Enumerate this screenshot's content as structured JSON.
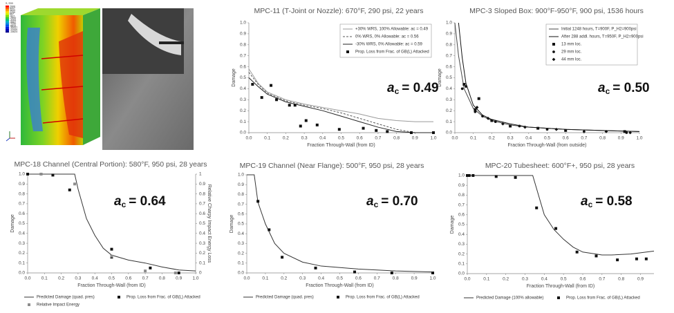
{
  "image": {
    "contour_legend": {
      "title": "S, S33",
      "levels": [
        7000,
        5417,
        3833,
        2250,
        667,
        -917,
        -2500,
        -4083,
        -5667,
        -7250,
        -8833,
        -10417,
        -12000,
        -14624
      ]
    }
  },
  "chart_data": [
    {
      "type": "line",
      "title": "MPC-11 (T-Joint or Nozzle): 670°F, 290 psi, 22 years",
      "x_label": "Fraction Through-Wall (from ID)",
      "y_label": "Damage",
      "annotation": {
        "symbol": "a",
        "subscript": "c",
        "text": "= 0.49"
      },
      "legend": "upper right",
      "xlim": [
        0,
        1
      ],
      "ylim": [
        0,
        1
      ],
      "xticks": [
        {
          "value": 0,
          "label": "0.0"
        },
        0.1,
        0.2,
        0.3,
        0.4,
        0.5,
        0.6,
        0.7,
        0.8,
        0.9,
        {
          "value": 1,
          "label": "1.0"
        }
      ],
      "yticks": [
        {
          "value": 0,
          "label": "0.0"
        },
        0.1,
        0.2,
        0.3,
        0.4,
        0.5,
        0.6,
        0.7,
        0.8,
        0.9,
        {
          "value": 1,
          "label": "1.0"
        }
      ],
      "series": [
        {
          "name": "+30% WRS, 100% Allowable: ac = 0.49",
          "style": "line",
          "color": "#9a9a9a",
          "x": [
            0,
            0.05,
            0.1,
            0.2,
            0.3,
            0.4,
            0.5,
            0.6,
            0.7,
            0.8,
            0.9,
            1.0
          ],
          "values": [
            0.58,
            0.45,
            0.37,
            0.3,
            0.26,
            0.23,
            0.2,
            0.17,
            0.13,
            0.11,
            0.1,
            0.1
          ]
        },
        {
          "name": "0% WRS, 0% Allowable: ac = 0.56",
          "style": "line",
          "dash": true,
          "color": "#555555",
          "x": [
            0,
            0.05,
            0.1,
            0.2,
            0.3,
            0.4,
            0.5,
            0.6,
            0.7,
            0.8,
            0.9,
            1.0
          ],
          "values": [
            0.55,
            0.44,
            0.36,
            0.29,
            0.25,
            0.22,
            0.18,
            0.13,
            0.08,
            0.03,
            0,
            0
          ]
        },
        {
          "name": "-30% WRS, 0% Allowable: ac = 0.59",
          "style": "line",
          "color": "#222222",
          "x": [
            0,
            0.05,
            0.1,
            0.2,
            0.3,
            0.4,
            0.5,
            0.6,
            0.7,
            0.8,
            0.9,
            1.0
          ],
          "values": [
            0.5,
            0.42,
            0.35,
            0.28,
            0.24,
            0.2,
            0.15,
            0.1,
            0.05,
            0.01,
            0,
            0
          ]
        },
        {
          "name": "Prop. Loss from Frac. of GB(L) Attacked",
          "style": "markers",
          "marker": "square",
          "color": "#111111",
          "x": [
            0.02,
            0.07,
            0.12,
            0.15,
            0.22,
            0.25,
            0.28,
            0.31,
            0.37,
            0.49,
            0.62,
            0.69,
            0.75,
            0.88,
            1.0
          ],
          "values": [
            0.44,
            0.32,
            0.43,
            0.3,
            0.25,
            0.25,
            0.06,
            0.11,
            0.07,
            0.03,
            0.04,
            0.02,
            0.01,
            0,
            0
          ]
        }
      ]
    },
    {
      "type": "line",
      "title": "MPC-3 Sloped Box: 900°F-950°F, 900 psi, 1536 hours",
      "x_label": "Fraction Through-Wall (from outside)",
      "y_label": "Damage",
      "annotation": {
        "symbol": "a",
        "subscript": "c",
        "text": "= 0.50"
      },
      "legend": "upper right",
      "xlim": [
        0,
        1
      ],
      "ylim": [
        0,
        1
      ],
      "xticks": [
        {
          "value": 0,
          "label": "0.0"
        },
        0.1,
        0.2,
        0.3,
        0.4,
        0.5,
        0.6,
        0.7,
        0.8,
        0.9,
        {
          "value": 1,
          "label": "1.0"
        }
      ],
      "yticks": [
        {
          "value": 0,
          "label": "0.0"
        },
        0.1,
        0.2,
        0.3,
        0.4,
        0.5,
        0.6,
        0.7,
        0.8,
        0.9,
        {
          "value": 1,
          "label": "1.0"
        }
      ],
      "series": [
        {
          "name": "Initial 1248 hours, T=900F, P_H2=900psi",
          "style": "line",
          "color": "#444444",
          "x": [
            0,
            0.02,
            0.05,
            0.1,
            0.15,
            0.2,
            0.3,
            0.4,
            0.5,
            0.6,
            0.8,
            1.0
          ],
          "values": [
            1.0,
            0.7,
            0.4,
            0.22,
            0.15,
            0.11,
            0.07,
            0.05,
            0.04,
            0.03,
            0.02,
            0.01
          ]
        },
        {
          "name": "After 288 addl. hours, T=950F, P_H2=900psi",
          "style": "line",
          "color": "#111111",
          "x": [
            0.02,
            0.04,
            0.06,
            0.1,
            0.15,
            0.2,
            0.3,
            0.4,
            0.5,
            0.6,
            0.8,
            1.0
          ],
          "values": [
            1.0,
            0.68,
            0.45,
            0.25,
            0.16,
            0.12,
            0.08,
            0.05,
            0.04,
            0.03,
            0.02,
            0.01
          ]
        },
        {
          "name": "13 mm loc.",
          "style": "markers",
          "marker": "square",
          "color": "#111111",
          "x": [
            0.05,
            0.11,
            0.13,
            0.2,
            0.3,
            0.45,
            0.6,
            0.92
          ],
          "values": [
            0.44,
            0.21,
            0.31,
            0.11,
            0.06,
            0.04,
            0.02,
            0.01
          ]
        },
        {
          "name": "29 mm loc.",
          "style": "markers",
          "marker": "circle",
          "color": "#111111",
          "x": [
            0.04,
            0.11,
            0.15,
            0.22,
            0.35,
            0.5,
            0.7,
            0.93
          ],
          "values": [
            0.4,
            0.19,
            0.15,
            0.1,
            0.06,
            0.03,
            0.01,
            0
          ]
        },
        {
          "name": "44 mm loc.",
          "style": "markers",
          "marker": "diamond",
          "color": "#111111",
          "x": [
            0.06,
            0.12,
            0.18,
            0.26,
            0.38,
            0.55,
            0.82,
            0.95
          ],
          "values": [
            0.42,
            0.23,
            0.13,
            0.08,
            0.05,
            0.03,
            0.01,
            0
          ]
        }
      ]
    },
    {
      "type": "line",
      "title": "MPC-18 Channel (Central Portion): 580°F, 950 psi, 28 years",
      "x_label": "Fraction Through-Wall (from ID)",
      "y_label": "Damage",
      "y2_label": "Relative Charpy Impact Energy Loss",
      "annotation": {
        "symbol": "a",
        "subscript": "c",
        "text": "= 0.64"
      },
      "legend": "lower center",
      "xlim": [
        0,
        1
      ],
      "ylim": [
        0,
        1
      ],
      "y2lim": [
        0,
        1
      ],
      "xticks": [
        {
          "value": 0,
          "label": "0.0"
        },
        0.1,
        0.2,
        0.3,
        0.4,
        0.5,
        0.6,
        0.7,
        0.8,
        0.9,
        {
          "value": 1,
          "label": "1.0"
        }
      ],
      "yticks": [
        {
          "value": 0,
          "label": "0.0"
        },
        0.1,
        0.2,
        0.3,
        0.4,
        0.5,
        0.6,
        0.7,
        0.8,
        0.9,
        {
          "value": 1,
          "label": "1.0"
        }
      ],
      "y2ticks": [
        0,
        0.1,
        0.2,
        0.3,
        0.4,
        0.5,
        0.6,
        0.7,
        0.8,
        0.9,
        1
      ],
      "series": [
        {
          "name": "Predicted Damage (quad. pres)",
          "style": "line",
          "color": "#333333",
          "x": [
            0,
            0.28,
            0.3,
            0.35,
            0.4,
            0.45,
            0.5,
            0.6,
            0.7,
            0.8,
            0.9,
            1.0
          ],
          "values": [
            1,
            1,
            0.85,
            0.55,
            0.38,
            0.25,
            0.18,
            0.13,
            0.1,
            0.06,
            0.03,
            0.02
          ]
        },
        {
          "name": "Prop. Loss from Frac. of GB(L) Attacked",
          "style": "markers",
          "marker": "square",
          "color": "#111111",
          "x": [
            0,
            0.08,
            0.15,
            0.25,
            0.5,
            0.5,
            0.73,
            0.9
          ],
          "values": [
            1,
            1,
            0.99,
            0.84,
            0.24,
            0.16,
            0.05,
            0
          ]
        },
        {
          "name": "Relative Impact Energy",
          "style": "markers",
          "marker": "square",
          "color": "#8c8c8c",
          "axis": "y2",
          "x": [
            0.08,
            0.28,
            0.5,
            0.7,
            0.88
          ],
          "values": [
            1,
            0.9,
            0.17,
            0.02,
            0
          ]
        }
      ]
    },
    {
      "type": "line",
      "title": "MPC-19 Channel (Near Flange): 500°F, 950 psi, 28 years",
      "x_label": "Fraction Through-Wall (from ID)",
      "y_label": "Damage",
      "annotation": {
        "symbol": "a",
        "subscript": "c",
        "text": "= 0.70"
      },
      "legend": "lower center",
      "xlim": [
        0,
        1
      ],
      "ylim": [
        0,
        1
      ],
      "xticks": [
        {
          "value": 0,
          "label": "0.0"
        },
        0.1,
        0.2,
        0.3,
        0.4,
        0.5,
        0.6,
        0.7,
        0.8,
        0.9,
        {
          "value": 1,
          "label": "1.0"
        }
      ],
      "yticks": [
        {
          "value": 0,
          "label": "0.0"
        },
        0.1,
        0.2,
        0.3,
        0.4,
        0.5,
        0.6,
        0.7,
        0.8,
        0.9,
        {
          "value": 1,
          "label": "1.0"
        }
      ],
      "series": [
        {
          "name": "Predicted Damage (quad. pres)",
          "style": "line",
          "color": "#333333",
          "x": [
            0,
            0.04,
            0.06,
            0.1,
            0.15,
            0.2,
            0.3,
            0.4,
            0.6,
            0.8,
            1.0
          ],
          "values": [
            1,
            1,
            0.72,
            0.5,
            0.3,
            0.2,
            0.11,
            0.07,
            0.04,
            0.02,
            0.01
          ]
        },
        {
          "name": "Prop. Loss from Frac. of GB(L) Attacked",
          "style": "markers",
          "marker": "square",
          "color": "#111111",
          "x": [
            0.06,
            0.12,
            0.19,
            0.37,
            0.58,
            0.78,
            1.0
          ],
          "values": [
            0.73,
            0.44,
            0.16,
            0.05,
            0.01,
            0,
            0
          ]
        }
      ]
    },
    {
      "type": "line",
      "title": "MPC-20 Tubesheet: 600°F+, 950 psi, 28 years",
      "x_label": "Fraction Through-Wall (from ID)",
      "y_label": "Damage",
      "annotation": {
        "symbol": "a",
        "subscript": "c",
        "text": "= 0.58"
      },
      "legend": "lower center",
      "xlim": [
        0,
        0.97
      ],
      "ylim": [
        0,
        1
      ],
      "xticks": [
        {
          "value": 0,
          "label": "0.0"
        },
        0.1,
        0.2,
        0.3,
        0.4,
        0.5,
        0.6,
        0.7,
        0.8,
        0.9
      ],
      "yticks": [
        {
          "value": 0,
          "label": "0.0"
        },
        0.1,
        0.2,
        0.3,
        0.4,
        0.5,
        0.6,
        0.7,
        0.8,
        0.9,
        {
          "value": 1,
          "label": "1.0"
        }
      ],
      "series": [
        {
          "name": "Predicted Damage (100% allowable)",
          "style": "line",
          "color": "#333333",
          "x": [
            0,
            0.34,
            0.4,
            0.45,
            0.5,
            0.55,
            0.6,
            0.7,
            0.75,
            0.85,
            0.97
          ],
          "values": [
            1,
            1,
            0.6,
            0.45,
            0.35,
            0.27,
            0.22,
            0.19,
            0.19,
            0.2,
            0.23
          ]
        },
        {
          "name": "Prop. Loss from Frac. of GB(L) Attacked",
          "style": "markers",
          "marker": "square",
          "color": "#111111",
          "x": [
            0,
            0.01,
            0.03,
            0.15,
            0.25,
            0.36,
            0.46,
            0.57,
            0.67,
            0.78,
            0.88,
            0.93
          ],
          "values": [
            1,
            1,
            1,
            0.99,
            0.98,
            0.67,
            0.46,
            0.22,
            0.18,
            0.14,
            0.15,
            0.15
          ]
        }
      ]
    }
  ]
}
